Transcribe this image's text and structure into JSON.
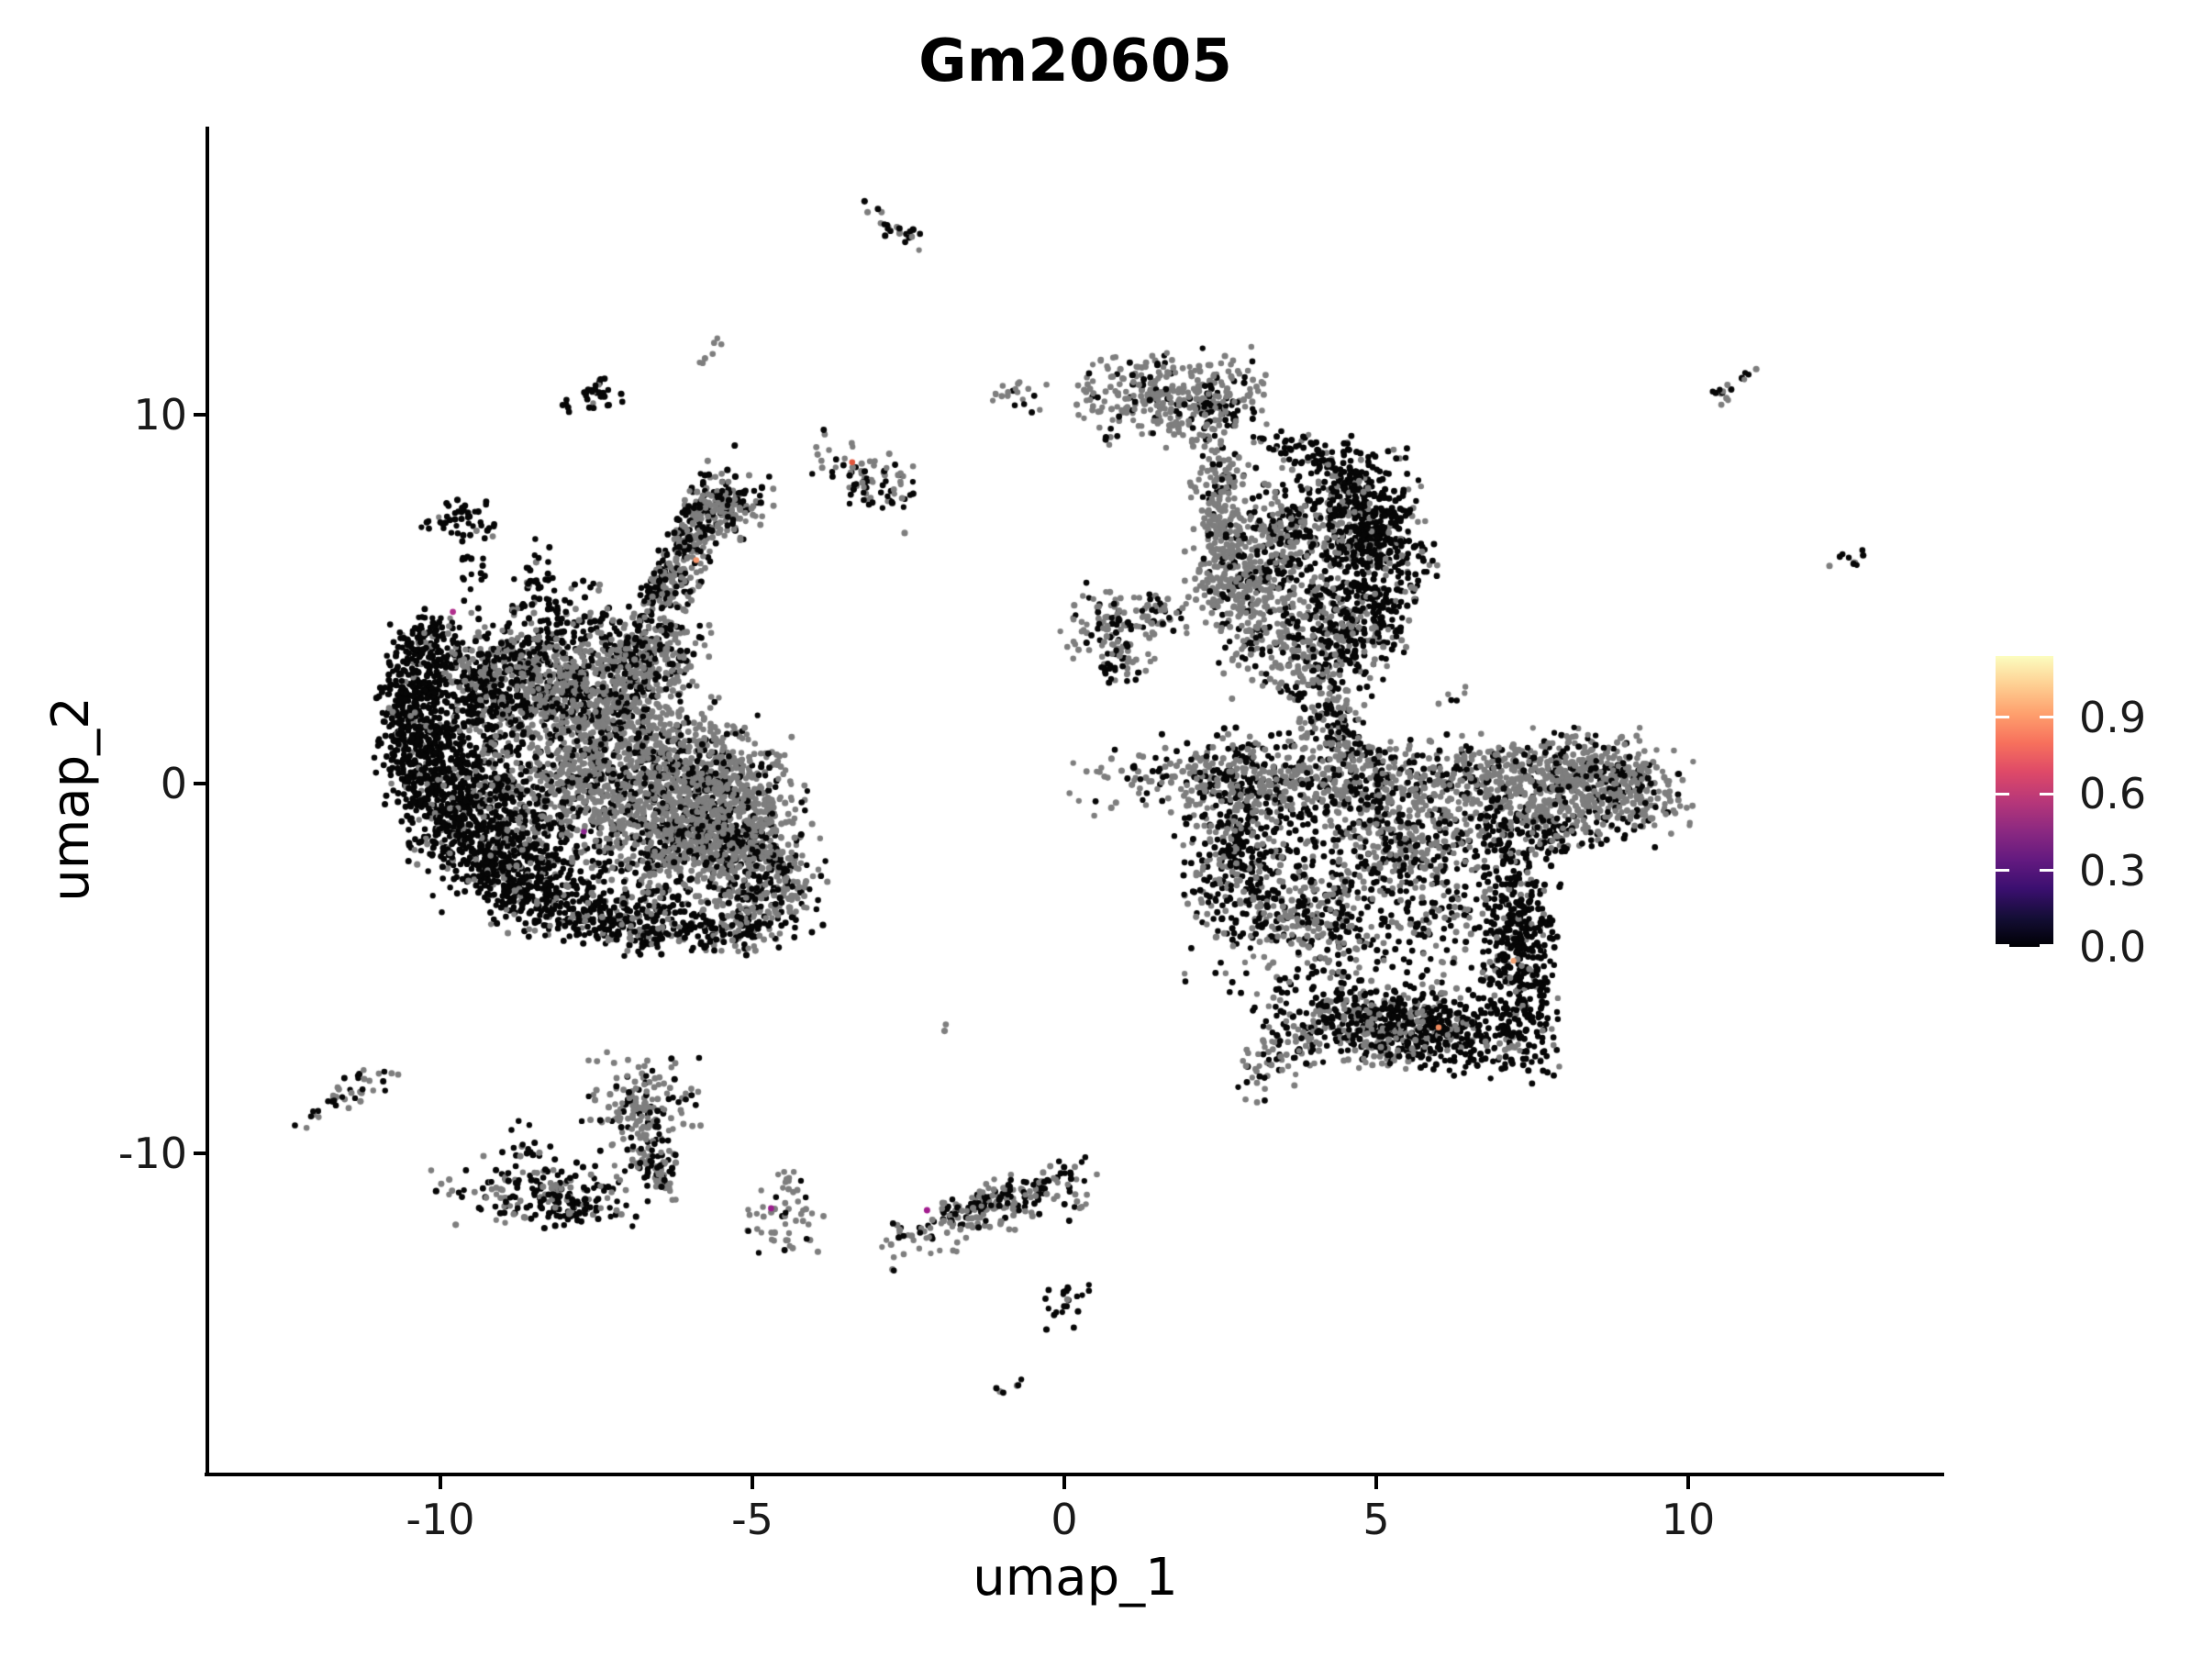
{
  "figure": {
    "background": "#FFFFFF"
  },
  "chart_data": {
    "type": "scatter",
    "title": "Gm20605",
    "xlabel": "umap_1",
    "ylabel": "umap_2",
    "xticks": [
      "-10",
      "-5",
      "0",
      "5",
      "10"
    ],
    "xtick_values": [
      -10,
      -5,
      0,
      5,
      10
    ],
    "yticks": [
      "10",
      "0",
      "-10"
    ],
    "ytick_values": [
      10,
      0,
      -10
    ],
    "xlim": [
      -13.7,
      14.1
    ],
    "ylim": [
      -18.6,
      17.8
    ],
    "grid": false,
    "legend_position": "right",
    "point_colors": {
      "expressing_zero": "#060606",
      "background_grey": "#7E7E7E"
    },
    "colorbar": {
      "labels": [
        "0.9",
        "0.6",
        "0.3",
        "0.0"
      ],
      "label_values": [
        0.9,
        0.6,
        0.3,
        0.0
      ],
      "value_max": 1.14,
      "gradient_bottom_to_top": [
        "#000004",
        "#140E36",
        "#3B0F70",
        "#641A80",
        "#8C2981",
        "#B73779",
        "#DE4968",
        "#F7705C",
        "#FE9F6D",
        "#FECF92",
        "#FCFDBF"
      ]
    },
    "clusters": [
      {
        "x": -9.7,
        "y": 7.15,
        "a": 19,
        "b": 11,
        "rot": 0,
        "n": 45,
        "fb": 0.92
      },
      {
        "x": -9.5,
        "y": 5.9,
        "a": 11,
        "b": 18,
        "rot": 0,
        "n": 16,
        "fb": 0.95
      },
      {
        "x": -10.25,
        "y": 3.6,
        "a": 20,
        "b": 22,
        "rot": 0,
        "n": 160,
        "fb": 0.93
      },
      {
        "x": -10.45,
        "y": 2.2,
        "a": 19,
        "b": 24,
        "rot": 0,
        "n": 200,
        "fb": 0.92
      },
      {
        "x": -10.3,
        "y": 0.7,
        "a": 24,
        "b": 28,
        "rot": 0,
        "n": 260,
        "fb": 0.9
      },
      {
        "x": -9.8,
        "y": -0.9,
        "a": 31,
        "b": 28,
        "rot": 0,
        "n": 280,
        "fb": 0.88
      },
      {
        "x": -9.0,
        "y": -2.2,
        "a": 37,
        "b": 24,
        "rot": 0,
        "n": 300,
        "fb": 0.85
      },
      {
        "x": -8.0,
        "y": -3.2,
        "a": 41,
        "b": 20,
        "rot": 0,
        "n": 260,
        "fb": 0.8
      },
      {
        "x": -6.9,
        "y": -3.8,
        "a": 37,
        "b": 16,
        "rot": 0,
        "n": 200,
        "fb": 0.72
      },
      {
        "x": -9.3,
        "y": 0.8,
        "a": 34,
        "b": 44,
        "rot": 0,
        "n": 300,
        "fb": 0.75
      },
      {
        "x": -8.6,
        "y": -0.8,
        "a": 41,
        "b": 36,
        "rot": 0,
        "n": 280,
        "fb": 0.68
      },
      {
        "x": -7.4,
        "y": 0.8,
        "a": 61,
        "b": 44,
        "rot": 0,
        "n": 700,
        "fb": 0.22
      },
      {
        "x": -6.4,
        "y": -0.2,
        "a": 54,
        "b": 40,
        "rot": 0,
        "n": 600,
        "fb": 0.25
      },
      {
        "x": -6.1,
        "y": -1.8,
        "a": 48,
        "b": 32,
        "rot": 0,
        "n": 450,
        "fb": 0.35
      },
      {
        "x": -5.4,
        "y": -0.1,
        "a": 34,
        "b": 36,
        "rot": 0,
        "n": 300,
        "fb": 0.2
      },
      {
        "x": -8.5,
        "y": 3.3,
        "a": 51,
        "b": 28,
        "rot": 0,
        "n": 380,
        "fb": 0.55
      },
      {
        "x": -7.5,
        "y": 2.4,
        "a": 48,
        "b": 28,
        "rot": 0,
        "n": 350,
        "fb": 0.3
      },
      {
        "x": -9.2,
        "y": 2.6,
        "a": 27,
        "b": 24,
        "rot": 0,
        "n": 180,
        "fb": 0.75
      },
      {
        "x": -8.4,
        "y": 5.6,
        "a": 10,
        "b": 32,
        "rot": 0,
        "n": 30,
        "fb": 0.9
      },
      {
        "x": -7.9,
        "y": 4.7,
        "a": 34,
        "b": 20,
        "rot": 0,
        "n": 60,
        "fb": 0.85
      },
      {
        "x": -6.1,
        "y": 5.9,
        "a": 65,
        "b": 13,
        "rot": -65,
        "n": 330,
        "fb": 0.28
      },
      {
        "x": -6.5,
        "y": 5.55,
        "a": 60,
        "b": 6,
        "rot": -65,
        "n": 90,
        "fb": 0.95
      },
      {
        "x": -5.45,
        "y": 7.35,
        "a": 20,
        "b": 14,
        "rot": 0,
        "n": 90,
        "fb": 0.25
      },
      {
        "x": -5.25,
        "y": 7.75,
        "a": 24,
        "b": 12,
        "rot": 0,
        "n": 30,
        "fb": 0.9
      },
      {
        "x": -5.0,
        "y": -1.6,
        "a": 34,
        "b": 32,
        "rot": 0,
        "n": 280,
        "fb": 0.3
      },
      {
        "x": -4.8,
        "y": -3.0,
        "a": 31,
        "b": 24,
        "rot": 0,
        "n": 200,
        "fb": 0.45
      },
      {
        "x": -5.4,
        "y": -4.0,
        "a": 34,
        "b": 12,
        "rot": 0,
        "n": 120,
        "fb": 0.7
      },
      {
        "x": -6.7,
        "y": 3.5,
        "a": 34,
        "b": 20,
        "rot": 0,
        "n": 200,
        "fb": 0.35
      },
      {
        "x": -7.55,
        "y": 10.55,
        "a": 15,
        "b": 10,
        "rot": 0,
        "n": 32,
        "fb": 0.9
      },
      {
        "x": -7.95,
        "y": 10.15,
        "a": 6,
        "b": 4,
        "rot": 0,
        "n": 4,
        "fb": 1
      },
      {
        "x": -5.6,
        "y": 11.9,
        "a": 14,
        "b": 4,
        "rot": -52,
        "n": 7,
        "fb": 0.15
      },
      {
        "x": -2.8,
        "y": 15.15,
        "a": 27,
        "b": 6,
        "rot": 40,
        "n": 22,
        "fb": 0.35
      },
      {
        "x": -2.5,
        "y": 14.85,
        "a": 6,
        "b": 5,
        "rot": 0,
        "n": 5,
        "fb": 1
      },
      {
        "x": -3.1,
        "y": 8.2,
        "a": 34,
        "b": 17,
        "rot": 25,
        "n": 85,
        "fb": 0.55
      },
      {
        "x": -0.7,
        "y": 10.65,
        "a": 16,
        "b": 10,
        "rot": 0,
        "n": 18,
        "fb": 0.15
      },
      {
        "x": -0.65,
        "y": 10.25,
        "a": 5,
        "b": 4,
        "rot": 0,
        "n": 3,
        "fb": 1
      },
      {
        "x": -11.5,
        "y": -8.4,
        "a": 34,
        "b": 9,
        "rot": -28,
        "n": 40,
        "fb": 0.5
      },
      {
        "x": -8.5,
        "y": -11.05,
        "a": 51,
        "b": 20,
        "rot": 0,
        "n": 150,
        "fb": 0.55
      },
      {
        "x": -8.6,
        "y": -10.0,
        "a": 24,
        "b": 18,
        "rot": 0,
        "n": 25,
        "fb": 0.9
      },
      {
        "x": -7.9,
        "y": -11.4,
        "a": 27,
        "b": 12,
        "rot": 0,
        "n": 60,
        "fb": 0.8
      },
      {
        "x": -6.8,
        "y": -8.55,
        "a": 31,
        "b": 26,
        "rot": 0,
        "n": 130,
        "fb": 0.3
      },
      {
        "x": -6.6,
        "y": -9.8,
        "a": 30,
        "b": 12,
        "rot": 70,
        "n": 80,
        "fb": 0.45
      },
      {
        "x": -6.5,
        "y": -10.7,
        "a": 12,
        "b": 10,
        "rot": 0,
        "n": 30,
        "fb": 0.5
      },
      {
        "x": -4.5,
        "y": -11.7,
        "a": 22,
        "b": 24,
        "rot": 0,
        "n": 55,
        "fb": 0.3
      },
      {
        "x": -1.2,
        "y": -11.55,
        "a": 58,
        "b": 14,
        "rot": -20,
        "n": 170,
        "fb": 0.25
      },
      {
        "x": -1.1,
        "y": -11.2,
        "a": 55,
        "b": 6,
        "rot": -20,
        "n": 60,
        "fb": 0.95
      },
      {
        "x": 0.15,
        "y": -11.45,
        "a": 9,
        "b": 8,
        "rot": 0,
        "n": 8,
        "fb": 0.25
      },
      {
        "x": -0.6,
        "y": -11.4,
        "a": 4,
        "b": 4,
        "rot": 0,
        "n": 2,
        "fb": 1
      },
      {
        "x": 0.1,
        "y": -10.9,
        "a": 4,
        "b": 4,
        "rot": 0,
        "n": 2,
        "fb": 1
      },
      {
        "x": 0.05,
        "y": -14.05,
        "a": 14,
        "b": 15,
        "rot": 0,
        "n": 22,
        "fb": 0.85
      },
      {
        "x": -0.95,
        "y": -16.35,
        "a": 12,
        "b": 4,
        "rot": -28,
        "n": 6,
        "fb": 0.45
      },
      {
        "x": -1.9,
        "y": -6.6,
        "a": 4,
        "b": 4,
        "rot": 0,
        "n": 2,
        "fb": 0
      },
      {
        "x": 1.75,
        "y": 10.45,
        "a": 48,
        "b": 26,
        "rot": 0,
        "n": 330,
        "fb": 0.18
      },
      {
        "x": 2.4,
        "y": 10.2,
        "a": 20,
        "b": 14,
        "rot": 0,
        "n": 40,
        "fb": 0.8
      },
      {
        "x": 2.35,
        "y": 8.6,
        "a": 14,
        "b": 20,
        "rot": 0,
        "n": 45,
        "fb": 0.25
      },
      {
        "x": 2.55,
        "y": 7.0,
        "a": 16,
        "b": 40,
        "rot": 0,
        "n": 160,
        "fb": 0.12
      },
      {
        "x": 2.8,
        "y": 5.6,
        "a": 27,
        "b": 28,
        "rot": 0,
        "n": 180,
        "fb": 0.18
      },
      {
        "x": 3.5,
        "y": 7.0,
        "a": 14,
        "b": 30,
        "rot": 0,
        "n": 40,
        "fb": 0.25
      },
      {
        "x": 3.9,
        "y": 8.95,
        "a": 40,
        "b": 9,
        "rot": 20,
        "n": 70,
        "fb": 0.85
      },
      {
        "x": 4.75,
        "y": 7.55,
        "a": 30,
        "b": 36,
        "rot": 0,
        "n": 280,
        "fb": 0.82
      },
      {
        "x": 4.95,
        "y": 6.3,
        "a": 34,
        "b": 32,
        "rot": 0,
        "n": 260,
        "fb": 0.78
      },
      {
        "x": 3.6,
        "y": 6.6,
        "a": 34,
        "b": 40,
        "rot": 0,
        "n": 280,
        "fb": 0.45
      },
      {
        "x": 3.7,
        "y": 4.0,
        "a": 44,
        "b": 32,
        "rot": 0,
        "n": 320,
        "fb": 0.4
      },
      {
        "x": 4.9,
        "y": 4.4,
        "a": 27,
        "b": 26,
        "rot": 0,
        "n": 180,
        "fb": 0.75
      },
      {
        "x": 4.2,
        "y": 2.6,
        "a": 24,
        "b": 26,
        "rot": 0,
        "n": 90,
        "fb": 0.5
      },
      {
        "x": 0.75,
        "y": 4.2,
        "a": 26,
        "b": 24,
        "rot": 0,
        "n": 110,
        "fb": 0.35
      },
      {
        "x": 1.6,
        "y": 4.5,
        "a": 14,
        "b": 12,
        "rot": 0,
        "n": 35,
        "fb": 0.45
      },
      {
        "x": 0.9,
        "y": 3.1,
        "a": 16,
        "b": 12,
        "rot": 0,
        "n": 30,
        "fb": 0.5
      },
      {
        "x": 4.6,
        "y": 0.1,
        "a": 140,
        "b": 18,
        "rot": 0,
        "n": 650,
        "fb": 0.25
      },
      {
        "x": 4.5,
        "y": 0.9,
        "a": 120,
        "b": 10,
        "rot": 0,
        "n": 60,
        "fb": 0.6
      },
      {
        "x": 8.1,
        "y": -0.1,
        "a": 64,
        "b": 30,
        "rot": 0,
        "n": 650,
        "fb": 0.22
      },
      {
        "x": 9.1,
        "y": -0.2,
        "a": 18,
        "b": 16,
        "rot": 0,
        "n": 60,
        "fb": 0.3
      },
      {
        "x": 7.6,
        "y": -1.3,
        "a": 40,
        "b": 14,
        "rot": 0,
        "n": 90,
        "fb": 0.8
      },
      {
        "x": 2.75,
        "y": -1.4,
        "a": 27,
        "b": 56,
        "rot": 0,
        "n": 330,
        "fb": 0.6
      },
      {
        "x": 4.8,
        "y": -2.6,
        "a": 95,
        "b": 75,
        "rot": 0,
        "n": 900,
        "fb": 0.62
      },
      {
        "x": 5.6,
        "y": -1.6,
        "a": 40,
        "b": 24,
        "rot": 0,
        "n": 140,
        "fb": 0.15
      },
      {
        "x": 3.9,
        "y": -3.8,
        "a": 30,
        "b": 22,
        "rot": 0,
        "n": 90,
        "fb": 0.2
      },
      {
        "x": 7.25,
        "y": -4.4,
        "a": 22,
        "b": 60,
        "rot": 0,
        "n": 420,
        "fb": 0.85
      },
      {
        "x": 5.6,
        "y": -6.6,
        "a": 75,
        "b": 22,
        "rot": 10,
        "n": 550,
        "fb": 0.78
      },
      {
        "x": 5.1,
        "y": -6.9,
        "a": 20,
        "b": 16,
        "rot": 0,
        "n": 90,
        "fb": 0.2
      },
      {
        "x": 3.8,
        "y": -7.0,
        "a": 40,
        "b": 16,
        "rot": -35,
        "n": 120,
        "fb": 0.45
      },
      {
        "x": 4.35,
        "y": 1.5,
        "a": 20,
        "b": 22,
        "rot": 0,
        "n": 70,
        "fb": 0.5
      },
      {
        "x": 6.3,
        "y": 2.35,
        "a": 10,
        "b": 4,
        "rot": -15,
        "n": 6,
        "fb": 0.5
      },
      {
        "x": 10.7,
        "y": 10.75,
        "a": 16,
        "b": 5,
        "rot": -33,
        "n": 12,
        "fb": 0.3
      },
      {
        "x": 10.45,
        "y": 10.5,
        "a": 5,
        "b": 4,
        "rot": 0,
        "n": 3,
        "fb": 1
      },
      {
        "x": 10.95,
        "y": 11.0,
        "a": 4,
        "b": 4,
        "rot": 0,
        "n": 2,
        "fb": 1
      },
      {
        "x": 12.6,
        "y": 6.1,
        "a": 12,
        "b": 8,
        "rot": 0,
        "n": 9,
        "fb": 0.45
      },
      {
        "x": 12.2,
        "y": 5.9,
        "a": 3,
        "b": 3,
        "rot": 0,
        "n": 1,
        "fb": 0
      }
    ],
    "highlight_points": [
      {
        "x": -9.8,
        "y": 4.65,
        "color": "#B02E8C"
      },
      {
        "x": -5.9,
        "y": 6.05,
        "color": "#F5956B"
      },
      {
        "x": -7.7,
        "y": -1.3,
        "color": "#8E2490"
      },
      {
        "x": -3.4,
        "y": 8.7,
        "color": "#E1563C"
      },
      {
        "x": 7.2,
        "y": -4.8,
        "color": "#F2A172"
      },
      {
        "x": -2.2,
        "y": -11.55,
        "color": "#A21C8E"
      },
      {
        "x": -4.7,
        "y": -11.5,
        "color": "#9B1D8E"
      },
      {
        "x": 6.0,
        "y": -6.6,
        "color": "#ED8A5E"
      }
    ]
  }
}
